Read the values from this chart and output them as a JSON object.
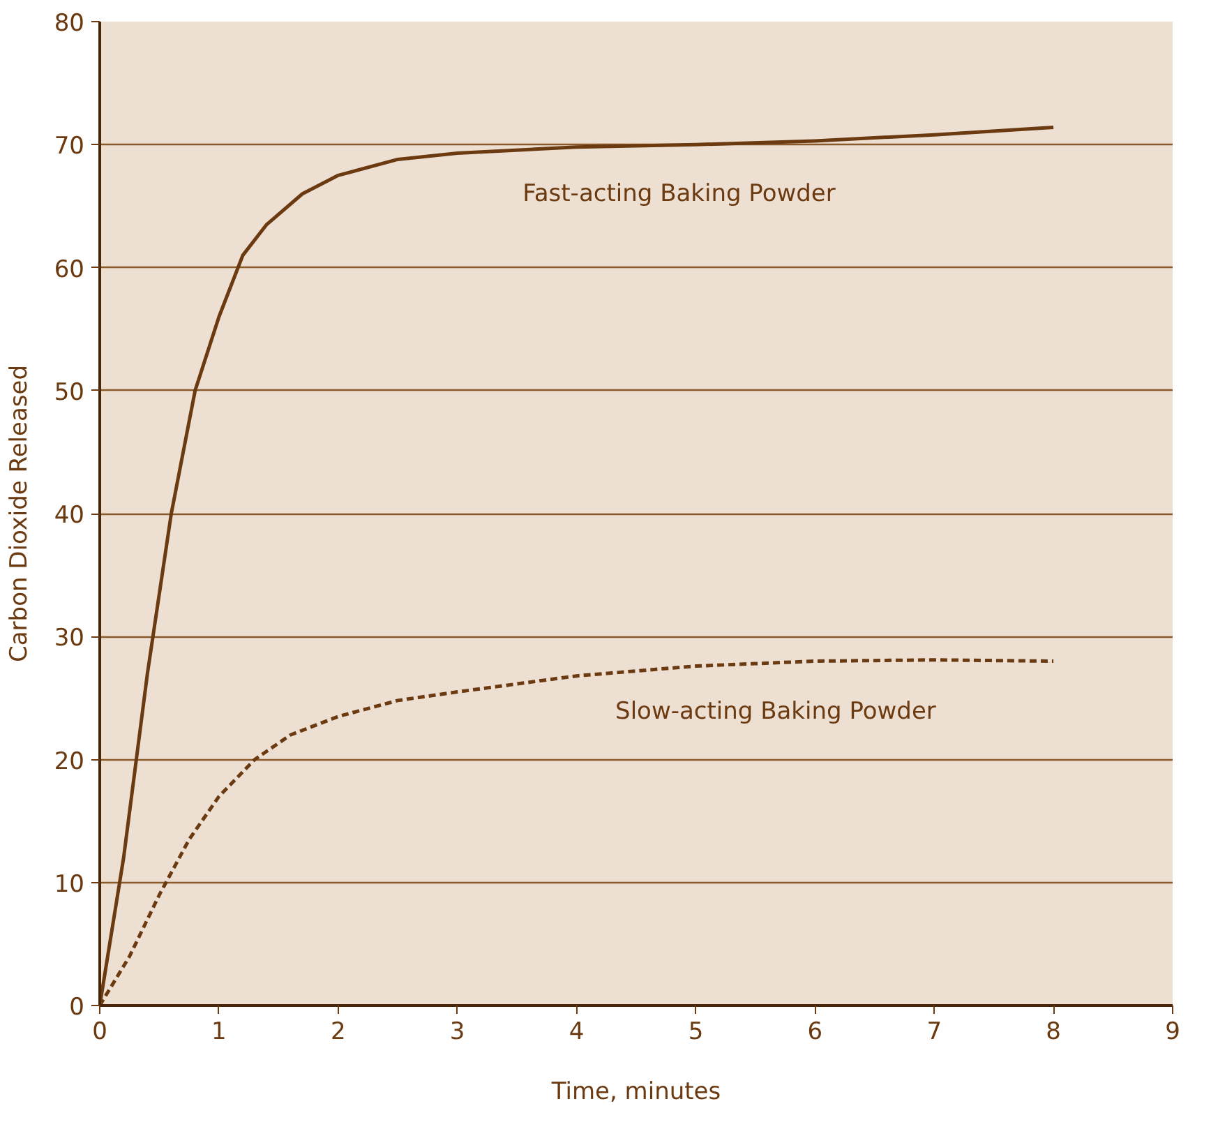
{
  "chart_data": {
    "type": "line",
    "xlabel": "Time, minutes",
    "ylabel": "Carbon Dioxide Released",
    "xlim": [
      0,
      9
    ],
    "ylim": [
      0,
      80
    ],
    "xticks": [
      0,
      1,
      2,
      3,
      4,
      5,
      6,
      7,
      8,
      9
    ],
    "yticks": [
      0,
      10,
      20,
      30,
      40,
      50,
      60,
      70,
      80
    ],
    "grid": "y",
    "series": [
      {
        "name": "Fast-acting Baking Powder",
        "color": "#6b3a10",
        "line_style": "solid",
        "x": [
          0,
          0.2,
          0.4,
          0.6,
          0.8,
          1.0,
          1.2,
          1.4,
          1.7,
          2,
          2.5,
          3,
          4,
          5,
          6,
          7,
          8
        ],
        "values": [
          0,
          12,
          27,
          40,
          50,
          56,
          61,
          63.5,
          66,
          67.5,
          68.8,
          69.3,
          69.8,
          70,
          70.3,
          70.8,
          71.4
        ]
      },
      {
        "name": "Slow-acting Baking Powder",
        "color": "#6b3a10",
        "line_style": "dashed",
        "x": [
          0,
          0.25,
          0.5,
          0.75,
          1,
          1.3,
          1.6,
          2,
          2.5,
          3,
          4,
          5,
          6,
          7,
          8
        ],
        "values": [
          0,
          4,
          9,
          13.5,
          17,
          20,
          22,
          23.5,
          24.8,
          25.5,
          26.8,
          27.6,
          28,
          28.1,
          28
        ]
      }
    ]
  }
}
